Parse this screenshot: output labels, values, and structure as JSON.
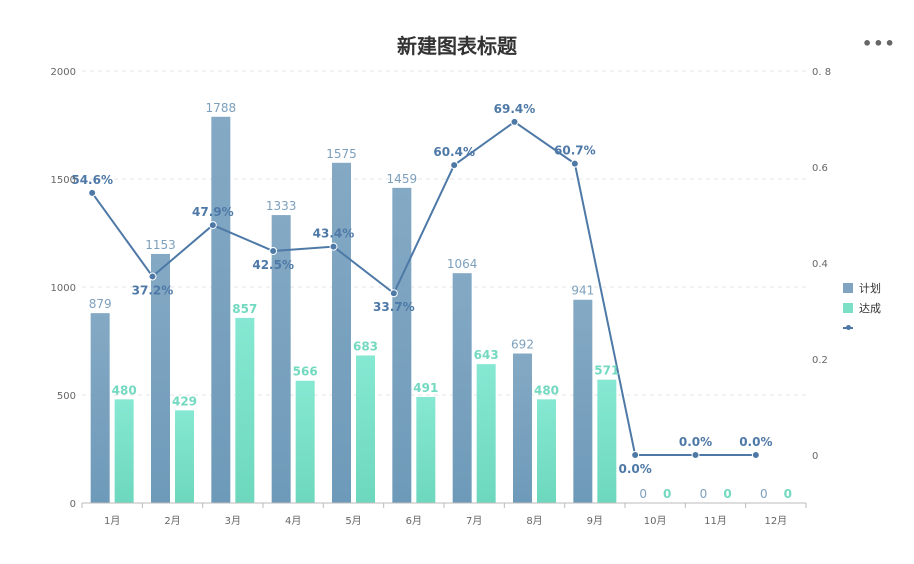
{
  "title": "新建图表标题",
  "menu_label": "•••",
  "colors": {
    "plan_top": "#84A9C4",
    "plan_bottom": "#6E9AB9",
    "actual_top": "#86E8D2",
    "actual_bottom": "#6DD8BD",
    "line": "#4E79A7",
    "axis_text": "#666666",
    "grid": "#e6e6e6"
  },
  "legend": {
    "plan": "计划",
    "actual": "达成",
    "rate": ""
  },
  "chart_data": {
    "type": "bar",
    "categories": [
      "1月",
      "2月",
      "3月",
      "4月",
      "5月",
      "6月",
      "7月",
      "8月",
      "9月",
      "10月",
      "11月",
      "12月"
    ],
    "series": [
      {
        "name": "计划",
        "type": "bar",
        "values": [
          879,
          1153,
          1788,
          1333,
          1575,
          1459,
          1064,
          692,
          941,
          0,
          0,
          0
        ],
        "labels": [
          "879",
          "1153",
          "1788",
          "1333",
          "1575",
          "1459",
          "1064",
          "692",
          "941",
          "0",
          "0",
          "0"
        ]
      },
      {
        "name": "达成",
        "type": "bar",
        "values": [
          480,
          429,
          857,
          566,
          683,
          491,
          643,
          480,
          571,
          0,
          0,
          0
        ],
        "labels": [
          "480",
          "429",
          "857",
          "566",
          "683",
          "491",
          "643",
          "480",
          "571",
          "0",
          "0",
          "0"
        ]
      },
      {
        "type": "line",
        "axis": "right",
        "values": [
          0.546,
          0.372,
          0.479,
          0.425,
          0.434,
          0.337,
          0.604,
          0.694,
          0.607,
          0,
          0,
          0
        ],
        "labels": [
          "54.6%",
          "37.2%",
          "47.9%",
          "42.5%",
          "43.4%",
          "33.7%",
          "60.4%",
          "69.4%",
          "60.7%",
          "0.0%",
          "0.0%",
          "0.0%"
        ]
      }
    ],
    "y_left": {
      "ylim": [
        0,
        2000
      ],
      "ticks": [
        "0",
        "500",
        "1000",
        "1500",
        "2000"
      ]
    },
    "y_right": {
      "ylim": [
        -0.1,
        0.8
      ],
      "ticks": [
        "0",
        "0.2",
        "0.4",
        "0.6",
        "0. 8"
      ],
      "tick_values": [
        0,
        0.2,
        0.4,
        0.6,
        0.8
      ]
    },
    "grid": true,
    "legend_position": "right"
  }
}
